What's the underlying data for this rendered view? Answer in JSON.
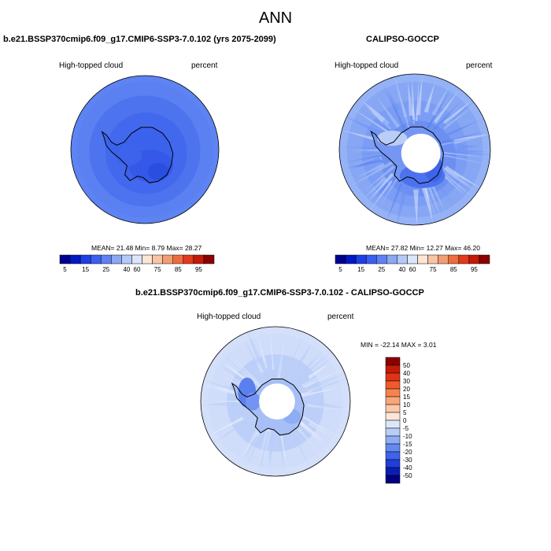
{
  "page": {
    "title": "ANN",
    "colors": {
      "background": "#ffffff",
      "coast": "#000000"
    }
  },
  "chart_data": [
    {
      "type": "heatmap",
      "projection": "south-polar-stereographic",
      "title": "b.e21.BSSP370cmip6.f09_g17.CMIP6-SSP3-7.0.102 (yrs 2075-2099)",
      "left_label": "High-topped cloud",
      "right_label": "percent",
      "stats": {
        "mean_label": "MEAN=",
        "mean": "21.48",
        "min_label": "Min=",
        "min": "8.79",
        "max_label": "Max=",
        "max": "28.27"
      },
      "colorbar": {
        "orientation": "horizontal",
        "tick_labels": [
          "5",
          "15",
          "25",
          "40",
          "60",
          "75",
          "85",
          "95"
        ],
        "colors": [
          "#000090",
          "#0019c4",
          "#1e3fe6",
          "#3a5ff0",
          "#5e82f3",
          "#8aa8f5",
          "#b4c9f8",
          "#dce6fb",
          "#fde6d4",
          "#f9c4a4",
          "#f59d72",
          "#ef6c3e",
          "#e33a1c",
          "#c41a08",
          "#8b0000"
        ]
      },
      "palette": {
        "water_high": "#3f68ee",
        "land_dominant": "#3b62ec",
        "lowest_patch": "#2a4ee0"
      }
    },
    {
      "type": "heatmap",
      "projection": "south-polar-stereographic",
      "title": "CALIPSO-GOCCP",
      "left_label": "High-topped cloud",
      "right_label": "percent",
      "stats": {
        "mean_label": "MEAN=",
        "mean": "27.82",
        "min_label": "Min=",
        "min": "12.27",
        "max_label": "Max=",
        "max": "46.20"
      },
      "colorbar": {
        "orientation": "horizontal",
        "tick_labels": [
          "5",
          "15",
          "25",
          "40",
          "60",
          "75",
          "85",
          "95"
        ],
        "colors": [
          "#000090",
          "#0019c4",
          "#1e3fe6",
          "#3a5ff0",
          "#5e82f3",
          "#8aa8f5",
          "#b4c9f8",
          "#dce6fb",
          "#fde6d4",
          "#f9c4a4",
          "#f59d72",
          "#ef6c3e",
          "#e33a1c",
          "#c41a08",
          "#8b0000"
        ]
      },
      "missing_pole": true
    },
    {
      "type": "heatmap",
      "projection": "south-polar-stereographic",
      "title": "b.e21.BSSP370cmip6.f09_g17.CMIP6-SSP3-7.0.102 - CALIPSO-GOCCP",
      "left_label": "High-topped cloud",
      "right_label": "percent",
      "stats": {
        "min_label": "MIN =",
        "min": "-22.14",
        "max_label": "MAX =",
        "max": "3.01"
      },
      "colorbar": {
        "orientation": "vertical",
        "tick_labels": [
          "50",
          "40",
          "30",
          "20",
          "15",
          "10",
          "5",
          "0",
          "-5",
          "-10",
          "-15",
          "-20",
          "-30",
          "-40",
          "-50"
        ],
        "colors": [
          "#8b0000",
          "#c41a08",
          "#e03214",
          "#f05a2c",
          "#f6834f",
          "#f9a57a",
          "#fcc8a8",
          "#fde6d8",
          "#dbe6fb",
          "#b8cdf8",
          "#8eadf4",
          "#6489f1",
          "#3f63ea",
          "#1f3fd8",
          "#0a1eb4",
          "#000080"
        ]
      },
      "missing_pole": true
    }
  ]
}
